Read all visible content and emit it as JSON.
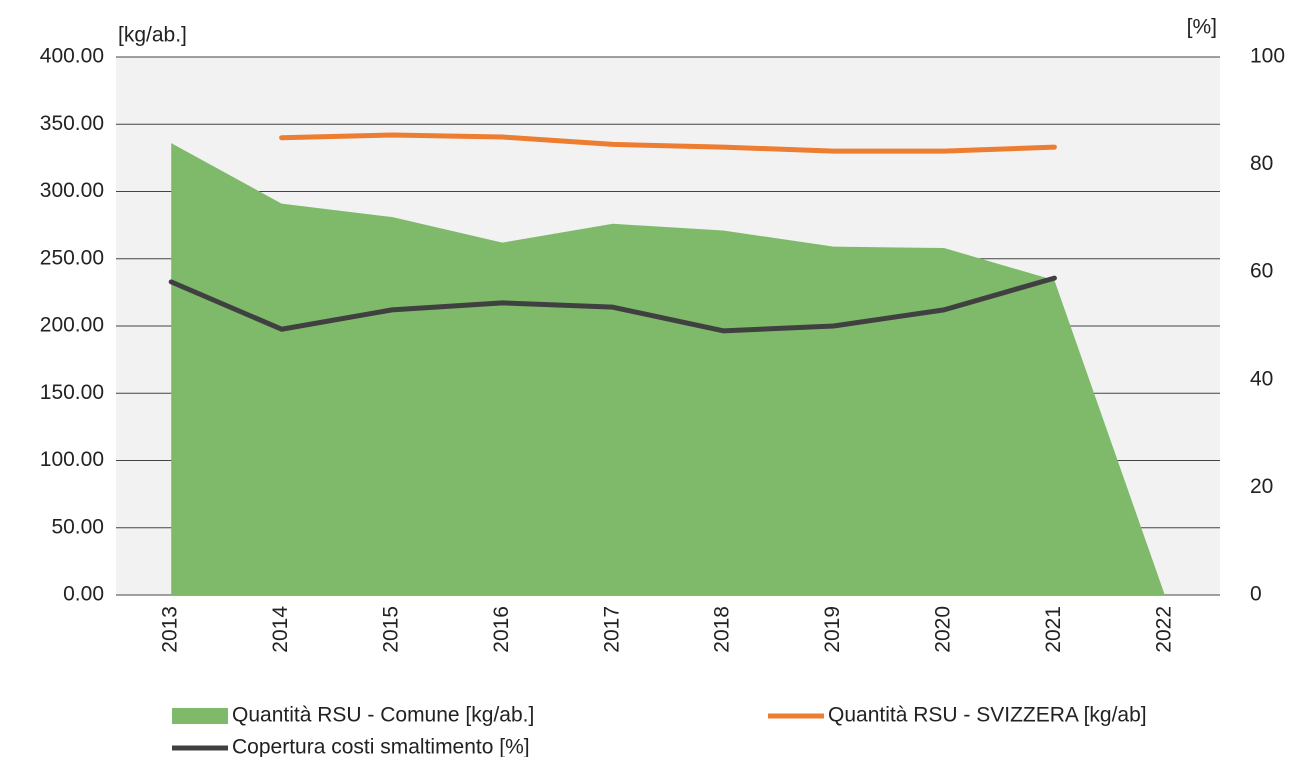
{
  "chart_data": {
    "type": "line",
    "y_label": "[kg/ab.]",
    "y2_label": "[%]",
    "categories": [
      "2013",
      "2014",
      "2015",
      "2016",
      "2017",
      "2018",
      "2019",
      "2020",
      "2021",
      "2022"
    ],
    "series": [
      {
        "name": "Quantità RSU - Comune [kg/ab.]",
        "type": "area",
        "color": "#7fba6b",
        "values": [
          336,
          291,
          281,
          262,
          276,
          271,
          259,
          258,
          234,
          0
        ]
      },
      {
        "name": "Quantità RSU - SVIZZERA [kg/ab]",
        "type": "line",
        "color": "#ed7d31",
        "values": [
          null,
          340,
          342,
          340.5,
          335,
          333,
          330,
          330,
          333,
          null
        ]
      },
      {
        "name": "Copertura costi smaltimento [%]",
        "type": "line",
        "axis": "y2",
        "color": "#404040",
        "values": [
          58.2,
          49.4,
          53,
          54.3,
          53.5,
          49.1,
          50,
          53,
          58.9,
          null
        ]
      }
    ],
    "ylim": [
      0,
      400
    ],
    "yticks": [
      {
        "value": 0,
        "label": "0.00"
      },
      {
        "value": 50,
        "label": "50.00"
      },
      {
        "value": 100,
        "label": "100.00"
      },
      {
        "value": 150,
        "label": "150.00"
      },
      {
        "value": 200,
        "label": "200.00"
      },
      {
        "value": 250,
        "label": "250.00"
      },
      {
        "value": 300,
        "label": "300.00"
      },
      {
        "value": 350,
        "label": "350.00"
      },
      {
        "value": 400,
        "label": "400.00"
      }
    ],
    "y2lim": [
      0,
      100
    ],
    "y2ticks": [
      0,
      20,
      40,
      60,
      80,
      100
    ],
    "grid": true,
    "legend": "bottom",
    "background": "#f2f2f2"
  }
}
